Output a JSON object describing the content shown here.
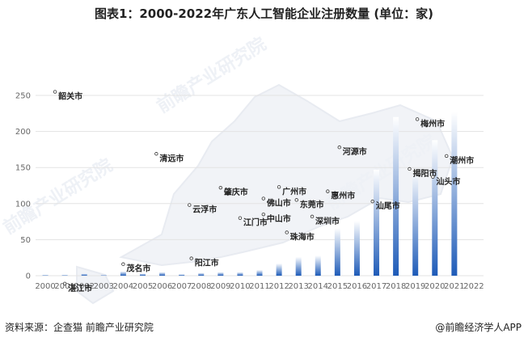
{
  "chart_data": {
    "type": "bar",
    "title": "图表1：2000-2022年广东人工智能企业注册数量 (单位：家)",
    "categories": [
      "2000",
      "2001",
      "2002",
      "2003",
      "2004",
      "2005",
      "2006",
      "2007",
      "2008",
      "2009",
      "2010",
      "2011",
      "2012",
      "2013",
      "2014",
      "2015",
      "2016",
      "2017",
      "2018",
      "2019",
      "2020",
      "2021",
      "2022"
    ],
    "values": [
      1,
      1,
      3,
      1,
      6,
      3,
      5,
      2,
      4,
      5,
      5,
      8,
      17,
      26,
      28,
      66,
      76,
      147,
      220,
      147,
      188,
      227,
      0
    ],
    "yticks": [
      "0",
      "50",
      "100",
      "150",
      "200",
      "250"
    ],
    "ylim": [
      0,
      250
    ],
    "grid": true,
    "bar_gradient": [
      "#ffffff",
      "#1e5bb8"
    ],
    "background_map_labels": [
      {
        "name": "韶关市",
        "x": 0.5,
        "y": 255
      },
      {
        "name": "清远市",
        "x": 5.7,
        "y": 169
      },
      {
        "name": "河源市",
        "x": 15.1,
        "y": 178
      },
      {
        "name": "梅州市",
        "x": 19.1,
        "y": 217
      },
      {
        "name": "潮州市",
        "x": 20.6,
        "y": 166
      },
      {
        "name": "揭阳市",
        "x": 18.7,
        "y": 148
      },
      {
        "name": "汕头市",
        "x": 19.9,
        "y": 137
      },
      {
        "name": "广州市",
        "x": 12.0,
        "y": 123
      },
      {
        "name": "肇庆市",
        "x": 9.0,
        "y": 122
      },
      {
        "name": "惠州市",
        "x": 14.5,
        "y": 117
      },
      {
        "name": "汕尾市",
        "x": 16.8,
        "y": 103
      },
      {
        "name": "佛山市",
        "x": 11.2,
        "y": 107
      },
      {
        "name": "东莞市",
        "x": 12.9,
        "y": 105
      },
      {
        "name": "云浮市",
        "x": 7.4,
        "y": 98
      },
      {
        "name": "中山市",
        "x": 11.2,
        "y": 85
      },
      {
        "name": "深圳市",
        "x": 13.7,
        "y": 82
      },
      {
        "name": "江门市",
        "x": 10.0,
        "y": 80
      },
      {
        "name": "珠海市",
        "x": 12.4,
        "y": 60
      },
      {
        "name": "阳江市",
        "x": 7.5,
        "y": 24
      },
      {
        "name": "茂名市",
        "x": 4.0,
        "y": 16
      },
      {
        "name": "湛江市",
        "x": 1.0,
        "y": -11
      }
    ]
  },
  "footer": {
    "source": "资料来源：企查猫 前瞻产业研究院",
    "brand": "@前瞻经济学人APP"
  },
  "watermark": {
    "text": "前瞻产业研究院"
  }
}
